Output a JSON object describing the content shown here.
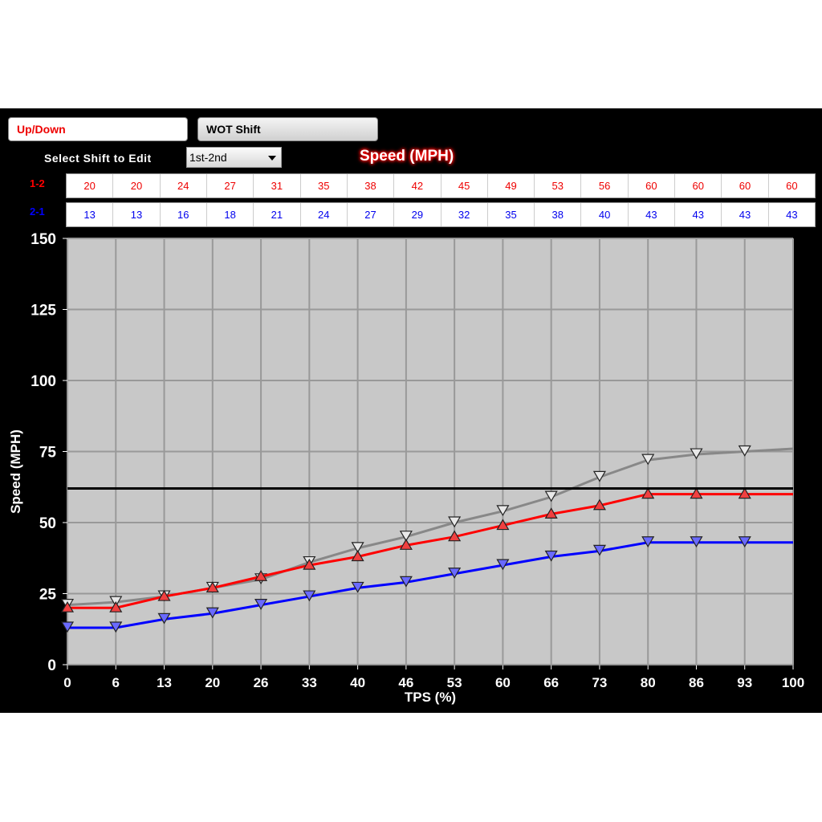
{
  "tabs": [
    {
      "label": "Up/Down",
      "active": true
    },
    {
      "label": "WOT Shift",
      "active": false
    }
  ],
  "select": {
    "label": "Select Shift to Edit",
    "value": "1st-2nd"
  },
  "table": {
    "title": "Speed (MPH)",
    "rows": [
      {
        "label": "1-2",
        "color": "#ee0000",
        "values": [
          20,
          20,
          24,
          27,
          31,
          35,
          38,
          42,
          45,
          49,
          53,
          56,
          60,
          60,
          60,
          60
        ]
      },
      {
        "label": "2-1",
        "color": "#0000ee",
        "values": [
          13,
          13,
          16,
          18,
          21,
          24,
          27,
          29,
          32,
          35,
          38,
          40,
          43,
          43,
          43,
          43
        ]
      }
    ]
  },
  "chart_data": {
    "type": "line",
    "xlabel": "TPS (%)",
    "ylabel": "Speed (MPH)",
    "x": [
      0,
      6,
      13,
      20,
      26,
      33,
      40,
      46,
      53,
      60,
      66,
      73,
      80,
      86,
      93,
      100
    ],
    "ylim": [
      0,
      150
    ],
    "yticks": [
      0,
      25,
      50,
      75,
      100,
      125,
      150
    ],
    "grid": true,
    "series": [
      {
        "color": "#888888",
        "marker": "triangle-down",
        "values": [
          21,
          22,
          24,
          27,
          30,
          36,
          41,
          45,
          50,
          54,
          59,
          66,
          72,
          74,
          75,
          76
        ]
      },
      {
        "color": "#ff0000",
        "marker": "triangle-up",
        "values": [
          20,
          20,
          24,
          27,
          31,
          35,
          38,
          42,
          45,
          49,
          53,
          56,
          60,
          60,
          60,
          60
        ]
      },
      {
        "color": "#0000ff",
        "marker": "triangle-down",
        "values": [
          13,
          13,
          16,
          18,
          21,
          24,
          27,
          29,
          32,
          35,
          38,
          40,
          43,
          43,
          43,
          43
        ]
      }
    ],
    "reference_line": {
      "y": 62,
      "color": "#000000"
    }
  }
}
